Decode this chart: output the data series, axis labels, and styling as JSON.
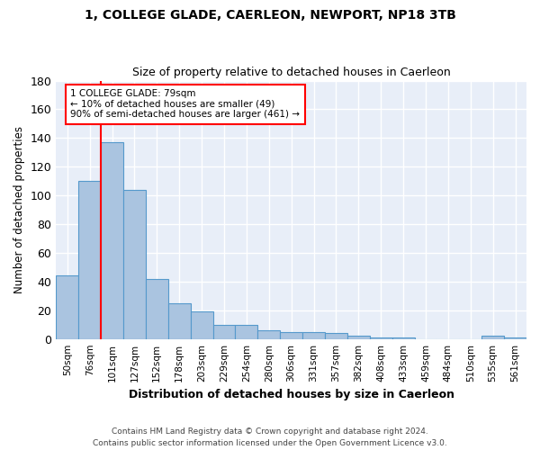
{
  "title_line1": "1, COLLEGE GLADE, CAERLEON, NEWPORT, NP18 3TB",
  "title_line2": "Size of property relative to detached houses in Caerleon",
  "xlabel": "Distribution of detached houses by size in Caerleon",
  "ylabel": "Number of detached properties",
  "categories": [
    "50sqm",
    "76sqm",
    "101sqm",
    "127sqm",
    "152sqm",
    "178sqm",
    "203sqm",
    "229sqm",
    "254sqm",
    "280sqm",
    "306sqm",
    "331sqm",
    "357sqm",
    "382sqm",
    "408sqm",
    "433sqm",
    "459sqm",
    "484sqm",
    "510sqm",
    "535sqm",
    "561sqm"
  ],
  "values": [
    44,
    110,
    137,
    104,
    42,
    25,
    19,
    10,
    10,
    6,
    5,
    5,
    4,
    2,
    1,
    1,
    0,
    0,
    0,
    2,
    1
  ],
  "bar_color": "#aac4e0",
  "bar_edge_color": "#5599cc",
  "red_line_x": 1.5,
  "annotation_text": "1 COLLEGE GLADE: 79sqm\n← 10% of detached houses are smaller (49)\n90% of semi-detached houses are larger (461) →",
  "annotation_box_color": "white",
  "annotation_box_edge": "red",
  "ylim": [
    0,
    180
  ],
  "yticks": [
    0,
    20,
    40,
    60,
    80,
    100,
    120,
    140,
    160,
    180
  ],
  "footer1": "Contains HM Land Registry data © Crown copyright and database right 2024.",
  "footer2": "Contains public sector information licensed under the Open Government Licence v3.0.",
  "plot_bg_color": "#e8eef8",
  "fig_bg_color": "#ffffff",
  "grid_color": "#ffffff"
}
